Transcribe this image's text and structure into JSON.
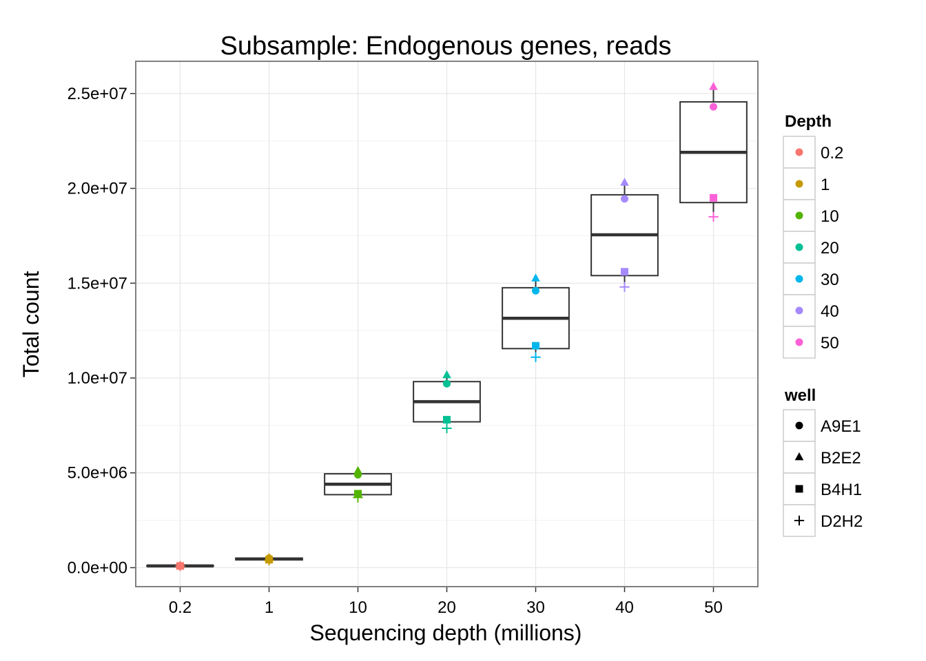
{
  "chart_data": {
    "type": "box",
    "title": "Subsample: Endogenous genes, reads",
    "xlabel": "Sequencing depth (millions)",
    "ylabel": "Total count",
    "categories": [
      "0.2",
      "1",
      "10",
      "20",
      "30",
      "40",
      "50"
    ],
    "ylim": [
      -1000000,
      26700000
    ],
    "yticks": [
      0,
      5000000,
      10000000,
      15000000,
      20000000,
      25000000
    ],
    "ytick_labels": [
      "0.0e+00",
      "5.0e+06",
      "1.0e+07",
      "1.5e+07",
      "2.0e+07",
      "2.5e+07"
    ],
    "grid": true,
    "colors": {
      "0.2": "#F8766D",
      "1": "#C49A00",
      "10": "#53B400",
      "20": "#00C094",
      "30": "#00B6EB",
      "40": "#A58AFF",
      "50": "#FB61D7"
    },
    "wells": [
      "A9E1",
      "B2E2",
      "B4H1",
      "D2H2"
    ],
    "well_shapes": {
      "A9E1": "circle",
      "B2E2": "triangle",
      "B4H1": "square",
      "D2H2": "plus"
    },
    "points": {
      "0.2": {
        "A9E1": 100000,
        "B2E2": 110000,
        "B4H1": 90000,
        "D2H2": 80000
      },
      "1": {
        "A9E1": 500000,
        "B2E2": 520000,
        "B4H1": 420000,
        "D2H2": 380000
      },
      "10": {
        "A9E1": 4900000,
        "B2E2": 5100000,
        "B4H1": 3900000,
        "D2H2": 3700000
      },
      "20": {
        "A9E1": 9700000,
        "B2E2": 10150000,
        "B4H1": 7800000,
        "D2H2": 7350000
      },
      "30": {
        "A9E1": 14600000,
        "B2E2": 15250000,
        "B4H1": 11700000,
        "D2H2": 11100000
      },
      "40": {
        "A9E1": 19450000,
        "B2E2": 20300000,
        "B4H1": 15600000,
        "D2H2": 14800000
      },
      "50": {
        "A9E1": 24300000,
        "B2E2": 25350000,
        "B4H1": 19500000,
        "D2H2": 18500000
      }
    },
    "boxes": {
      "0.2": {
        "min": 80000,
        "q1": 87000,
        "median": 95000,
        "q3": 103000,
        "max": 110000
      },
      "1": {
        "min": 380000,
        "q1": 410000,
        "median": 460000,
        "q3": 505000,
        "max": 520000
      },
      "10": {
        "min": 3700000,
        "q1": 3850000,
        "median": 4400000,
        "q3": 4950000,
        "max": 5100000
      },
      "20": {
        "min": 7350000,
        "q1": 7690000,
        "median": 8750000,
        "q3": 9810000,
        "max": 10150000
      },
      "30": {
        "min": 11100000,
        "q1": 11550000,
        "median": 13150000,
        "q3": 14760000,
        "max": 15250000
      },
      "40": {
        "min": 14800000,
        "q1": 15400000,
        "median": 17550000,
        "q3": 19660000,
        "max": 20300000
      },
      "50": {
        "min": 18500000,
        "q1": 19250000,
        "median": 21900000,
        "q3": 24560000,
        "max": 25350000
      }
    },
    "legend": {
      "position": "right",
      "depth_title": "Depth",
      "depth_items": [
        "0.2",
        "1",
        "10",
        "20",
        "30",
        "40",
        "50"
      ],
      "well_title": "well",
      "well_items": [
        "A9E1",
        "B2E2",
        "B4H1",
        "D2H2"
      ]
    }
  }
}
